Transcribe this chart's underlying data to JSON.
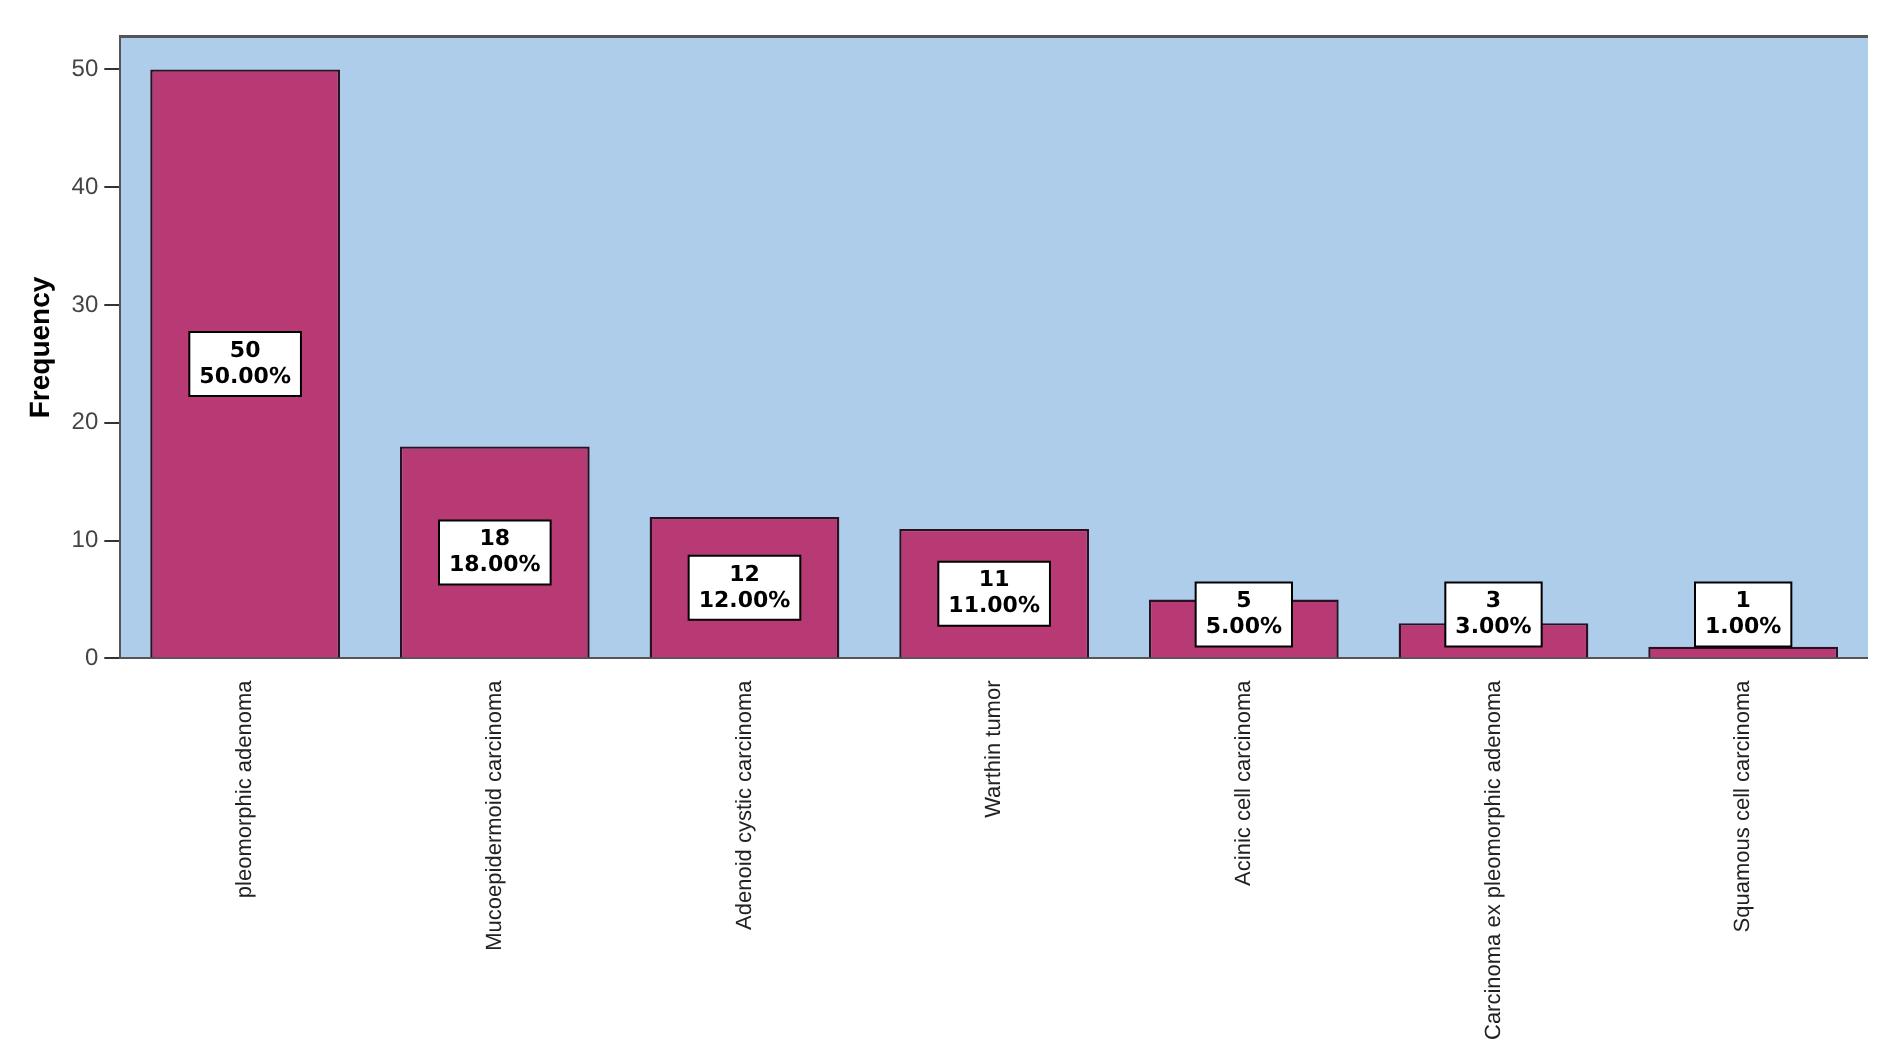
{
  "chart_data": {
    "type": "bar",
    "ylabel": "Frequency",
    "categories": [
      "pleomorphic adenoma",
      "Mucoepidermoid carcinoma",
      "Adenoid cystic carcinoma",
      "Warthin tumor",
      "Acinic cell carcinoma",
      "Carcinoma ex pleomorphic adenoma",
      "Squamous cell carcinoma"
    ],
    "values": [
      50,
      18,
      12,
      11,
      5,
      3,
      1
    ],
    "value_labels": [
      "50\n50.00%",
      "18\n18.00%",
      "12\n12.00%",
      "11\n11.00%",
      "5\n5.00%",
      "3\n3.00%",
      "1\n1.00%"
    ],
    "color": "#b83a74",
    "ylim": [
      0,
      52.8
    ],
    "yticks": [
      0,
      10,
      20,
      30,
      40,
      50
    ],
    "grid": false,
    "legend": false
  }
}
